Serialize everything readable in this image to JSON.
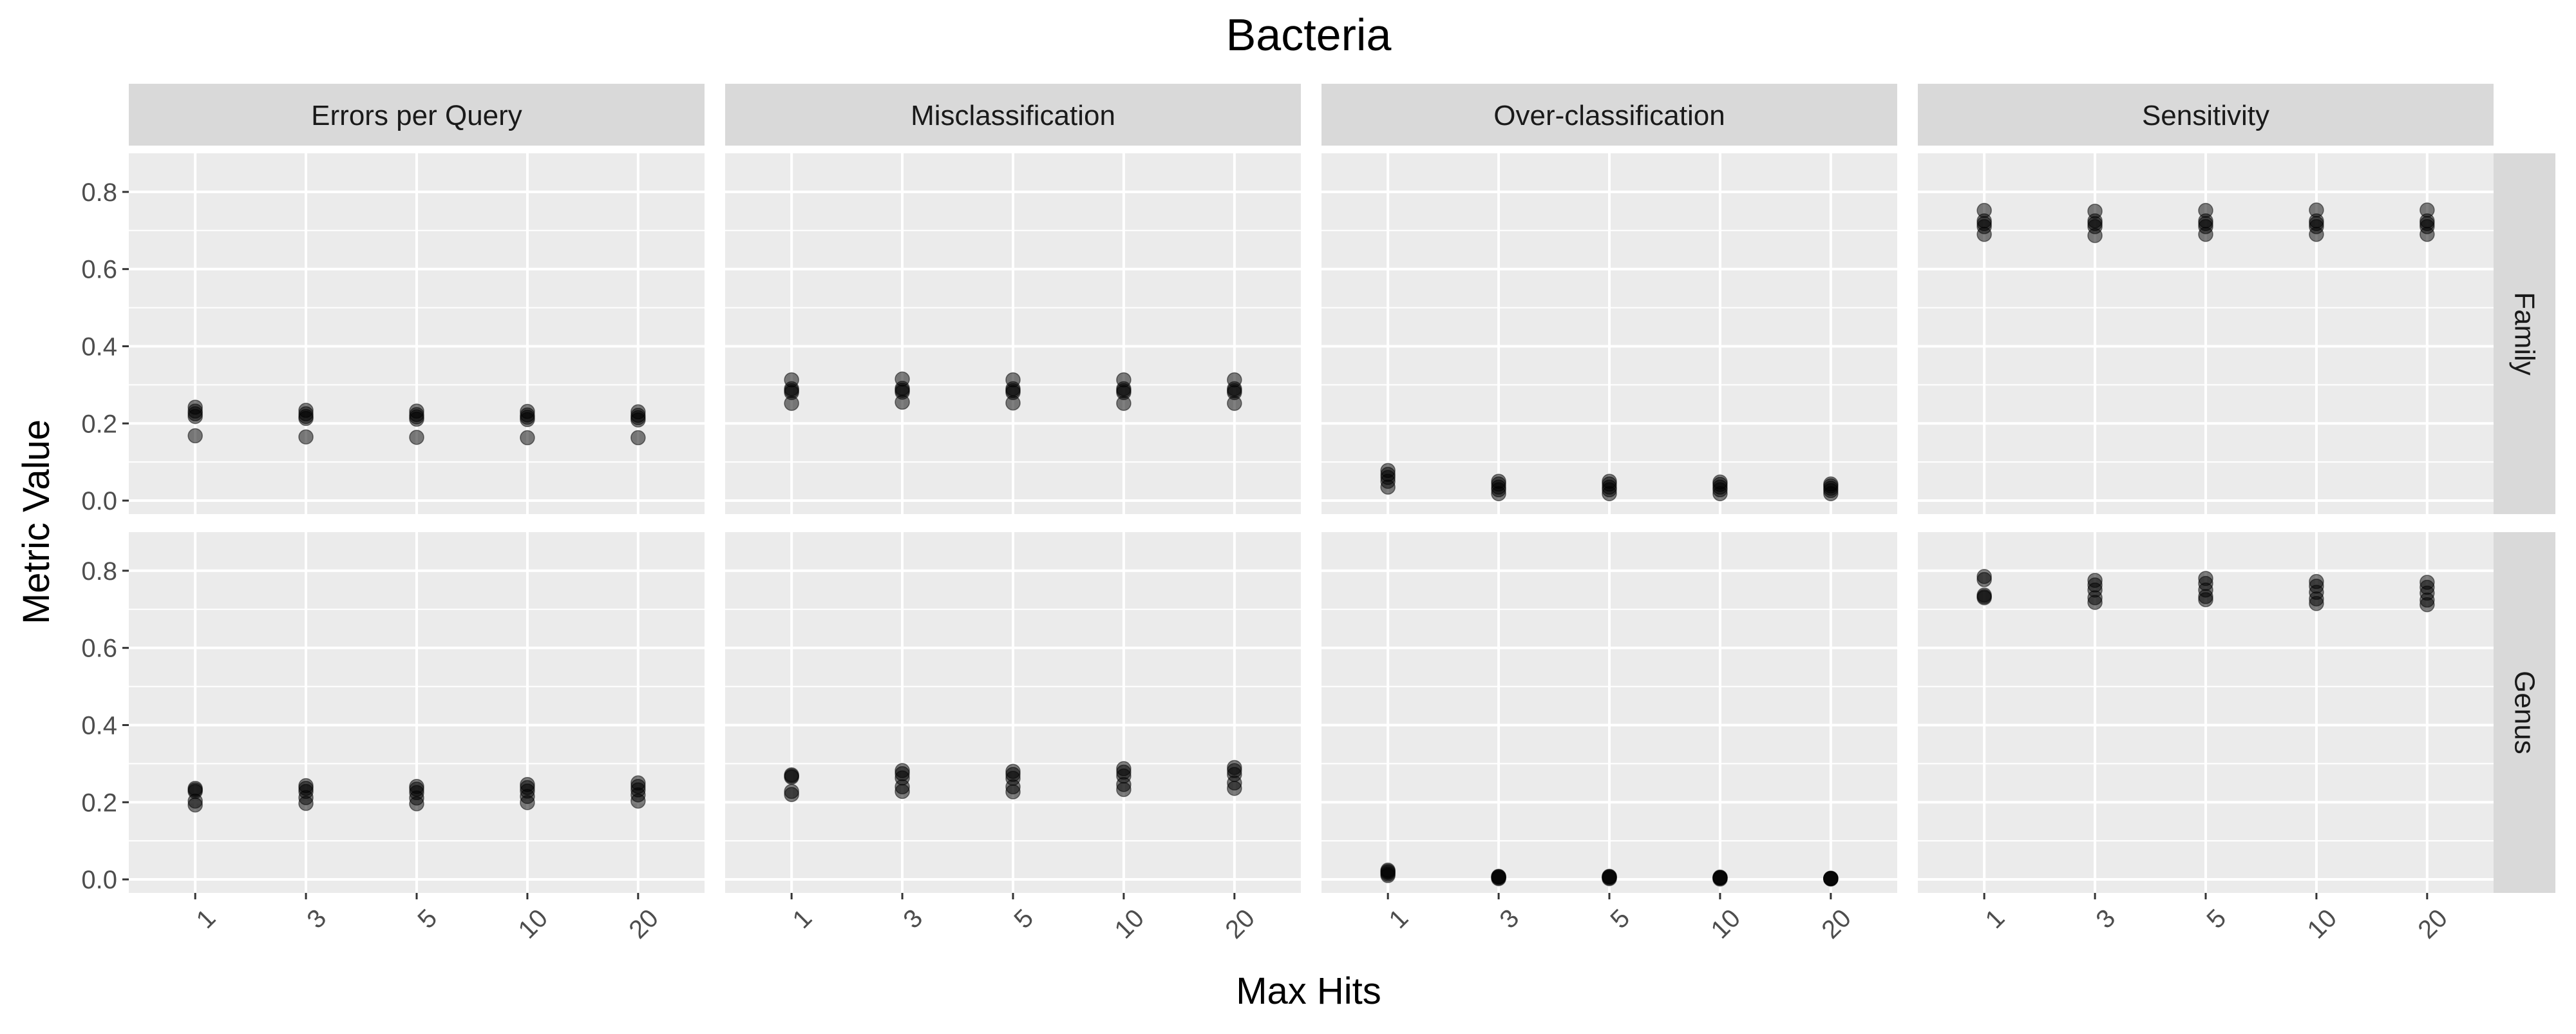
{
  "chart_data": {
    "type": "scatter",
    "title": "Bacteria",
    "xlabel": "Max Hits",
    "ylabel": "Metric Value",
    "x_categories": [
      "1",
      "3",
      "5",
      "10",
      "20"
    ],
    "y_ticks": [
      "0.0",
      "0.2",
      "0.4",
      "0.6",
      "0.8"
    ],
    "ylim": [
      -0.035,
      0.9
    ],
    "grid": true,
    "column_facets": [
      "Errors per Query",
      "Misclassification",
      "Over-classification",
      "Sensitivity"
    ],
    "row_facets": [
      "Family",
      "Genus"
    ],
    "point_color": "#000000",
    "panel_background": "#ebebeb",
    "strip_background": "#d9d9d9",
    "panels": [
      {
        "row": "Family",
        "col": "Errors per Query",
        "points": [
          {
            "x": "1",
            "y": [
              0.168,
              0.218,
              0.225,
              0.232,
              0.242
            ]
          },
          {
            "x": "3",
            "y": [
              0.165,
              0.213,
              0.218,
              0.225,
              0.234
            ]
          },
          {
            "x": "5",
            "y": [
              0.164,
              0.211,
              0.217,
              0.223,
              0.232
            ]
          },
          {
            "x": "10",
            "y": [
              0.163,
              0.21,
              0.216,
              0.222,
              0.231
            ]
          },
          {
            "x": "20",
            "y": [
              0.163,
              0.209,
              0.215,
              0.221,
              0.23
            ]
          }
        ]
      },
      {
        "row": "Family",
        "col": "Misclassification",
        "points": [
          {
            "x": "1",
            "y": [
              0.252,
              0.28,
              0.285,
              0.29,
              0.313
            ]
          },
          {
            "x": "3",
            "y": [
              0.255,
              0.281,
              0.286,
              0.291,
              0.315
            ]
          },
          {
            "x": "5",
            "y": [
              0.253,
              0.28,
              0.285,
              0.29,
              0.313
            ]
          },
          {
            "x": "10",
            "y": [
              0.252,
              0.28,
              0.285,
              0.29,
              0.313
            ]
          },
          {
            "x": "20",
            "y": [
              0.252,
              0.28,
              0.285,
              0.29,
              0.313
            ]
          }
        ]
      },
      {
        "row": "Family",
        "col": "Over-classification",
        "points": [
          {
            "x": "1",
            "y": [
              0.035,
              0.05,
              0.06,
              0.068,
              0.078
            ]
          },
          {
            "x": "3",
            "y": [
              0.018,
              0.028,
              0.035,
              0.043,
              0.05
            ]
          },
          {
            "x": "5",
            "y": [
              0.018,
              0.028,
              0.035,
              0.043,
              0.05
            ]
          },
          {
            "x": "10",
            "y": [
              0.018,
              0.028,
              0.035,
              0.042,
              0.048
            ]
          },
          {
            "x": "20",
            "y": [
              0.018,
              0.026,
              0.032,
              0.038,
              0.043
            ]
          }
        ]
      },
      {
        "row": "Family",
        "col": "Sensitivity",
        "points": [
          {
            "x": "1",
            "y": [
              0.69,
              0.71,
              0.718,
              0.725,
              0.752
            ]
          },
          {
            "x": "3",
            "y": [
              0.687,
              0.71,
              0.718,
              0.725,
              0.75
            ]
          },
          {
            "x": "5",
            "y": [
              0.69,
              0.71,
              0.718,
              0.725,
              0.752
            ]
          },
          {
            "x": "10",
            "y": [
              0.69,
              0.71,
              0.718,
              0.725,
              0.753
            ]
          },
          {
            "x": "20",
            "y": [
              0.69,
              0.71,
              0.718,
              0.725,
              0.753
            ]
          }
        ]
      },
      {
        "row": "Genus",
        "col": "Errors per Query",
        "points": [
          {
            "x": "1",
            "y": [
              0.193,
              0.203,
              0.228,
              0.232,
              0.236
            ]
          },
          {
            "x": "3",
            "y": [
              0.197,
              0.212,
              0.228,
              0.236,
              0.243
            ]
          },
          {
            "x": "5",
            "y": [
              0.196,
              0.211,
              0.225,
              0.234,
              0.241
            ]
          },
          {
            "x": "10",
            "y": [
              0.199,
              0.215,
              0.229,
              0.238,
              0.246
            ]
          },
          {
            "x": "20",
            "y": [
              0.203,
              0.219,
              0.232,
              0.241,
              0.25
            ]
          }
        ]
      },
      {
        "row": "Genus",
        "col": "Misclassification",
        "points": [
          {
            "x": "1",
            "y": [
              0.22,
              0.228,
              0.265,
              0.268,
              0.271
            ]
          },
          {
            "x": "3",
            "y": [
              0.228,
              0.24,
              0.263,
              0.274,
              0.282
            ]
          },
          {
            "x": "5",
            "y": [
              0.227,
              0.24,
              0.262,
              0.272,
              0.28
            ]
          },
          {
            "x": "10",
            "y": [
              0.233,
              0.246,
              0.268,
              0.278,
              0.287
            ]
          },
          {
            "x": "20",
            "y": [
              0.236,
              0.25,
              0.272,
              0.282,
              0.29
            ]
          }
        ]
      },
      {
        "row": "Genus",
        "col": "Over-classification",
        "points": [
          {
            "x": "1",
            "y": [
              0.01,
              0.014,
              0.018,
              0.021,
              0.024
            ]
          },
          {
            "x": "3",
            "y": [
              0.002,
              0.004,
              0.006,
              0.007,
              0.008
            ]
          },
          {
            "x": "5",
            "y": [
              0.002,
              0.004,
              0.006,
              0.007,
              0.008
            ]
          },
          {
            "x": "10",
            "y": [
              0.001,
              0.003,
              0.004,
              0.005,
              0.006
            ]
          },
          {
            "x": "20",
            "y": [
              0.001,
              0.002,
              0.002,
              0.003,
              0.003
            ]
          }
        ]
      },
      {
        "row": "Genus",
        "col": "Sensitivity",
        "points": [
          {
            "x": "1",
            "y": [
              0.73,
              0.733,
              0.737,
              0.777,
              0.785
            ]
          },
          {
            "x": "3",
            "y": [
              0.718,
              0.73,
              0.75,
              0.763,
              0.775
            ]
          },
          {
            "x": "5",
            "y": [
              0.725,
              0.733,
              0.75,
              0.767,
              0.78
            ]
          },
          {
            "x": "10",
            "y": [
              0.715,
              0.727,
              0.744,
              0.76,
              0.772
            ]
          },
          {
            "x": "20",
            "y": [
              0.712,
              0.724,
              0.742,
              0.757,
              0.77
            ]
          }
        ]
      }
    ]
  }
}
